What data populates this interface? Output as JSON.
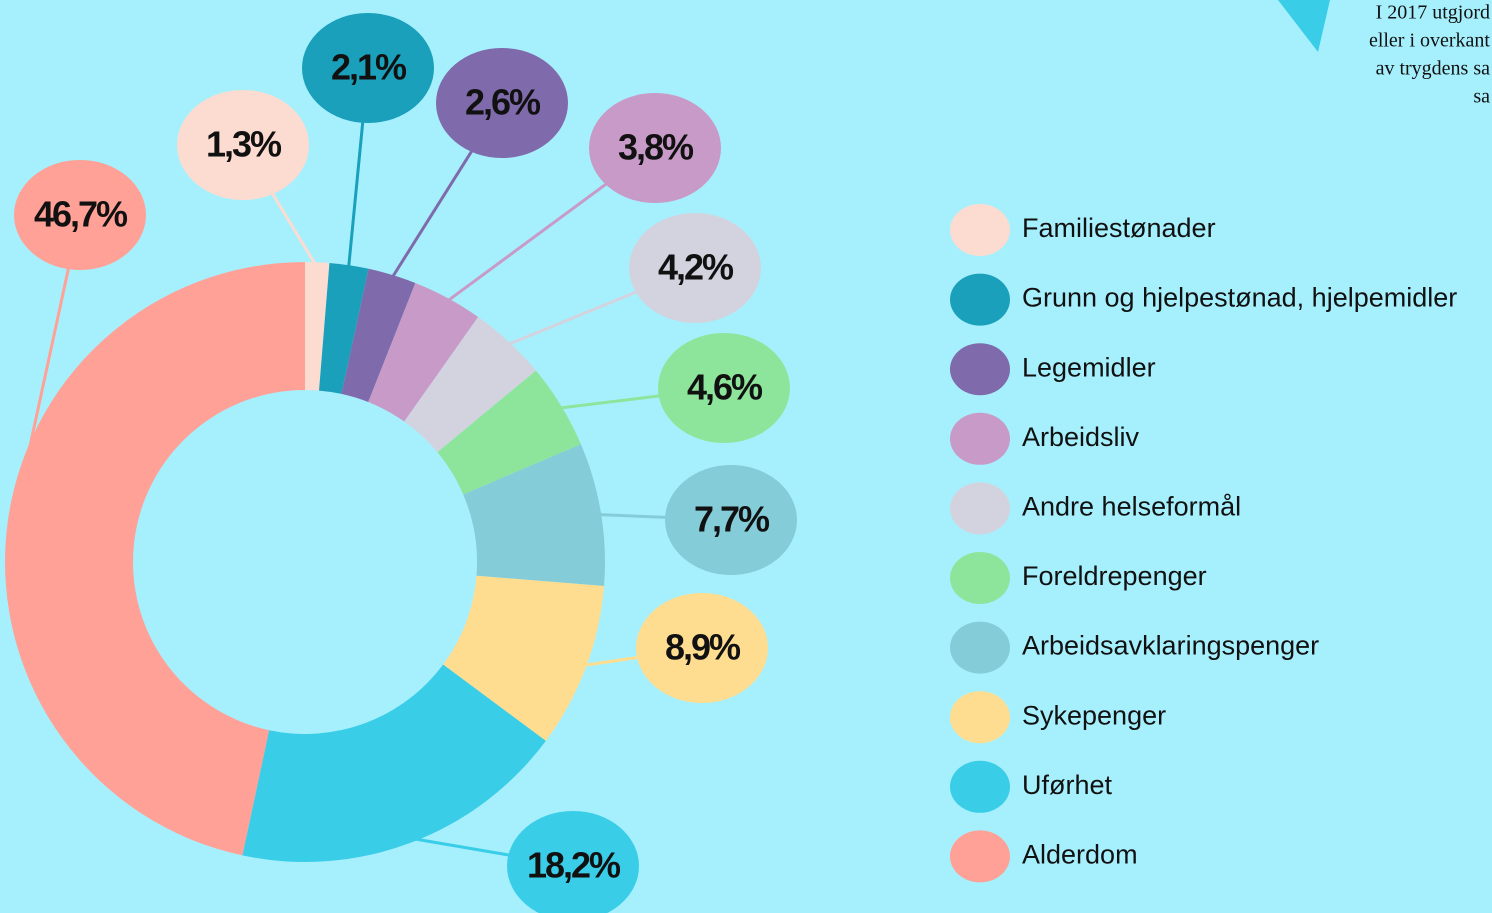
{
  "chart_data": {
    "type": "donut",
    "categories": [
      "Familiestønader",
      "Grunn og hjelpestønad, hjelpemidler",
      "Legemidler",
      "Arbeidsliv",
      "Andre helseformål",
      "Foreldrepenger",
      "Arbeidsavklaringspenger",
      "Sykepenger",
      "Uførhet",
      "Alderdom"
    ],
    "values": [
      1.3,
      2.1,
      2.6,
      3.8,
      4.2,
      4.6,
      7.7,
      8.9,
      18.2,
      46.7
    ],
    "value_labels": [
      "1,3%",
      "2,1%",
      "2,6%",
      "3,8%",
      "4,2%",
      "4,6%",
      "7,7%",
      "8,9%",
      "18,2%",
      "46,7%"
    ],
    "colors": [
      "#fcdcd0",
      "#1aa0ba",
      "#7f6aab",
      "#c89ac8",
      "#d3d3e0",
      "#8de59b",
      "#85ccd9",
      "#ffdd90",
      "#3acde8",
      "#ffa197"
    ],
    "annotation_lines": [
      "I 2017 utgjord",
      "eller i overkant",
      "av trygdens sa",
      "sa"
    ]
  }
}
